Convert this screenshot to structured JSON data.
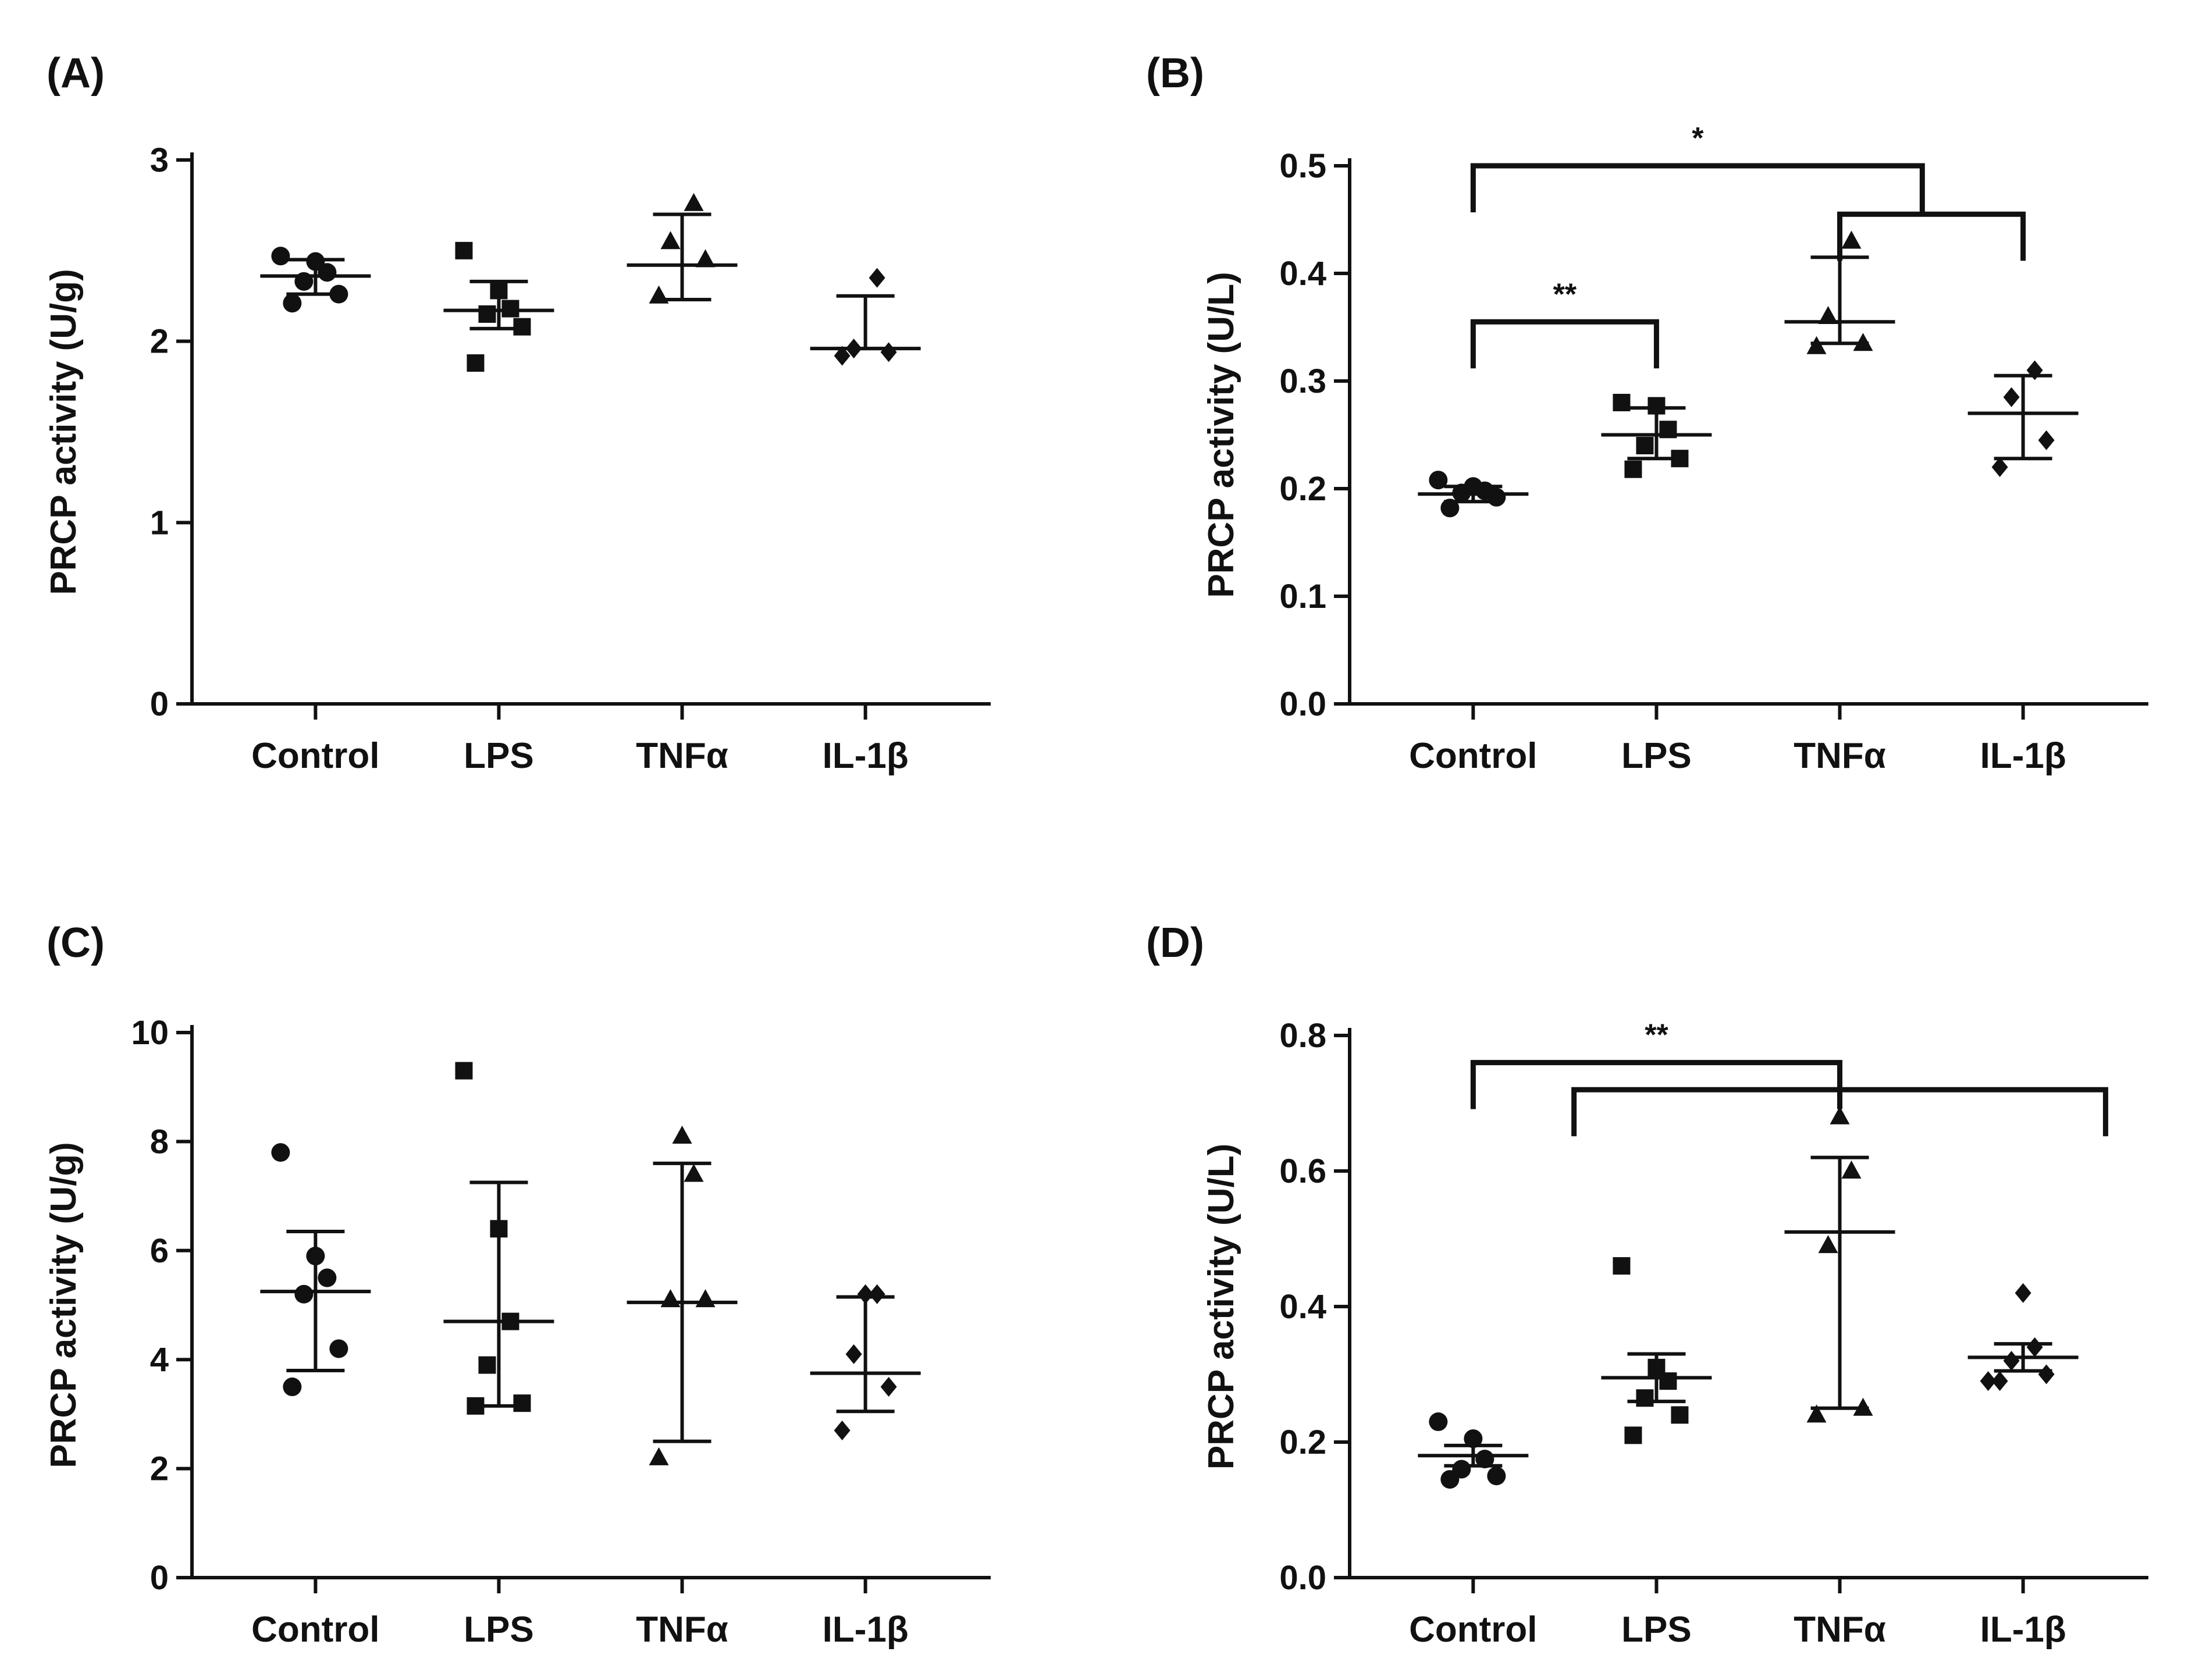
{
  "chart_data": [
    {
      "panel": "(A)",
      "type": "scatter",
      "ylabel": "PRCP activity (U/g)",
      "categories": [
        "Control",
        "LPS",
        "TNFα",
        "IL-1β"
      ],
      "ylim": [
        0,
        3
      ],
      "yticks": [
        0,
        1,
        2,
        3
      ],
      "series": [
        {
          "marker": "circle",
          "points": [
            2.21,
            2.26,
            2.33,
            2.38,
            2.44,
            2.47
          ],
          "mean": 2.36,
          "sd_low": 2.26,
          "sd_high": 2.45
        },
        {
          "marker": "square",
          "points": [
            1.88,
            2.08,
            2.15,
            2.18,
            2.28,
            2.5
          ],
          "mean": 2.17,
          "sd_low": 2.07,
          "sd_high": 2.33
        },
        {
          "marker": "triangle",
          "points": [
            2.25,
            2.45,
            2.55,
            2.76
          ],
          "mean": 2.42,
          "sd_low": 2.23,
          "sd_high": 2.7
        },
        {
          "marker": "diamond",
          "points": [
            1.92,
            1.94,
            1.96,
            2.35
          ],
          "mean": 1.96,
          "sd_low": 1.96,
          "sd_high": 2.25
        }
      ],
      "significance": []
    },
    {
      "panel": "(B)",
      "type": "scatter",
      "ylabel": "PRCP activity (U/L)",
      "categories": [
        "Control",
        "LPS",
        "TNFα",
        "IL-1β"
      ],
      "ylim": [
        0,
        0.5
      ],
      "yticks": [
        "0.0",
        "0.1",
        "0.2",
        "0.3",
        "0.4",
        "0.5"
      ],
      "series": [
        {
          "marker": "circle",
          "points": [
            0.182,
            0.192,
            0.196,
            0.198,
            0.202,
            0.208
          ],
          "mean": 0.195,
          "sd_low": 0.188,
          "sd_high": 0.202
        },
        {
          "marker": "square",
          "points": [
            0.218,
            0.228,
            0.24,
            0.255,
            0.277,
            0.28
          ],
          "mean": 0.25,
          "sd_low": 0.228,
          "sd_high": 0.275
        },
        {
          "marker": "triangle",
          "points": [
            0.332,
            0.335,
            0.36,
            0.43
          ],
          "mean": 0.355,
          "sd_low": 0.335,
          "sd_high": 0.415
        },
        {
          "marker": "diamond",
          "points": [
            0.22,
            0.245,
            0.285,
            0.31
          ],
          "mean": 0.27,
          "sd_low": 0.228,
          "sd_high": 0.305
        }
      ],
      "significance": [
        {
          "label": "**",
          "from": 0,
          "to": 1,
          "level": 0.355
        },
        {
          "label": "*",
          "from": 0,
          "to": 2.45,
          "level": 0.5
        },
        {
          "label": "",
          "from": 2,
          "to": 3,
          "level": 0.455
        }
      ]
    },
    {
      "panel": "(C)",
      "type": "scatter",
      "ylabel": "PRCP activity (U/g)",
      "categories": [
        "Control",
        "LPS",
        "TNFα",
        "IL-1β"
      ],
      "ylim": [
        0,
        10
      ],
      "yticks": [
        0,
        2,
        4,
        6,
        8,
        10
      ],
      "series": [
        {
          "marker": "circle",
          "points": [
            3.5,
            4.2,
            5.2,
            5.5,
            5.9,
            7.8
          ],
          "mean": 5.25,
          "sd_low": 3.8,
          "sd_high": 6.35
        },
        {
          "marker": "square",
          "points": [
            3.15,
            3.2,
            3.9,
            4.7,
            6.4,
            9.3
          ],
          "mean": 4.7,
          "sd_low": 3.15,
          "sd_high": 7.25
        },
        {
          "marker": "triangle",
          "points": [
            2.2,
            5.1,
            5.1,
            7.4,
            8.1
          ],
          "mean": 5.05,
          "sd_low": 2.5,
          "sd_high": 7.6
        },
        {
          "marker": "diamond",
          "points": [
            2.7,
            3.5,
            4.1,
            5.2,
            5.2
          ],
          "mean": 3.75,
          "sd_low": 3.05,
          "sd_high": 5.15
        }
      ],
      "significance": []
    },
    {
      "panel": "(D)",
      "type": "scatter",
      "ylabel": "PRCP activity (U/L)",
      "categories": [
        "Control",
        "LPS",
        "TNFα",
        "IL-1β"
      ],
      "ylim": [
        0,
        0.8
      ],
      "yticks": [
        "0.0",
        "0.2",
        "0.4",
        "0.6",
        "0.8"
      ],
      "series": [
        {
          "marker": "circle",
          "points": [
            0.145,
            0.15,
            0.16,
            0.175,
            0.205,
            0.23
          ],
          "mean": 0.18,
          "sd_low": 0.165,
          "sd_high": 0.195
        },
        {
          "marker": "square",
          "points": [
            0.21,
            0.24,
            0.265,
            0.29,
            0.31,
            0.46
          ],
          "mean": 0.295,
          "sd_low": 0.26,
          "sd_high": 0.33
        },
        {
          "marker": "triangle",
          "points": [
            0.24,
            0.25,
            0.49,
            0.6,
            0.68
          ],
          "mean": 0.51,
          "sd_low": 0.25,
          "sd_high": 0.62
        },
        {
          "marker": "diamond",
          "points": [
            0.29,
            0.3,
            0.32,
            0.34,
            0.42,
            0.29
          ],
          "mean": 0.325,
          "sd_low": 0.305,
          "sd_high": 0.345
        }
      ],
      "significance": [
        {
          "label": "**",
          "from": 0,
          "to": 2,
          "level": 0.76
        },
        {
          "label": "",
          "from": 0.55,
          "to": 3.45,
          "level": 0.72
        }
      ]
    }
  ]
}
